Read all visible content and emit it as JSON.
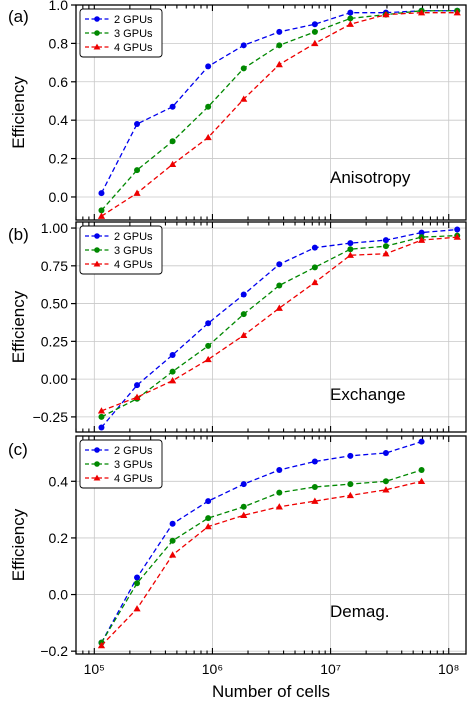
{
  "chart_data": [
    {
      "type": "line",
      "panel_label": "(a)",
      "annotation": "Anisotropy",
      "ylabel": "Efficiency",
      "xlabel": "",
      "xscale": "log",
      "xlim": [
        70000,
        140000000
      ],
      "ylim": [
        -0.12,
        1.0
      ],
      "yticks": [
        0.0,
        0.2,
        0.4,
        0.6,
        0.8,
        1.0
      ],
      "ytick_labels": [
        "0.0",
        "0.2",
        "0.4",
        "0.6",
        "0.8",
        "1.0"
      ],
      "grid": true,
      "legend_position": "top-left",
      "series": [
        {
          "name": "2 GPUs",
          "color": "#0000ee",
          "marker": "circle",
          "x": [
            115000,
            230000,
            460000,
            920000,
            1840000,
            3680000,
            7360000,
            14700000,
            29400000,
            58900000,
            118000000
          ],
          "y": [
            0.02,
            0.38,
            0.47,
            0.68,
            0.79,
            0.86,
            0.9,
            0.96,
            0.96,
            0.97,
            0.97
          ]
        },
        {
          "name": "3 GPUs",
          "color": "#008800",
          "marker": "circle",
          "x": [
            115000,
            230000,
            460000,
            920000,
            1840000,
            3680000,
            7360000,
            14700000,
            29400000,
            58900000,
            118000000
          ],
          "y": [
            -0.07,
            0.14,
            0.29,
            0.47,
            0.67,
            0.79,
            0.86,
            0.93,
            0.95,
            0.97,
            0.97
          ]
        },
        {
          "name": "4 GPUs",
          "color": "#ee0000",
          "marker": "triangle",
          "x": [
            115000,
            230000,
            460000,
            920000,
            1840000,
            3680000,
            7360000,
            14700000,
            29400000,
            58900000,
            118000000
          ],
          "y": [
            -0.1,
            0.02,
            0.17,
            0.31,
            0.51,
            0.69,
            0.8,
            0.9,
            0.95,
            0.96,
            0.96
          ]
        }
      ]
    },
    {
      "type": "line",
      "panel_label": "(b)",
      "annotation": "Exchange",
      "ylabel": "Efficiency",
      "xlabel": "",
      "xscale": "log",
      "xlim": [
        70000,
        140000000
      ],
      "ylim": [
        -0.35,
        1.04
      ],
      "yticks": [
        -0.25,
        0.0,
        0.25,
        0.5,
        0.75,
        1.0
      ],
      "ytick_labels": [
        "−0.25",
        "0.00",
        "0.25",
        "0.50",
        "0.75",
        "1.00"
      ],
      "grid": true,
      "legend_position": "top-left",
      "series": [
        {
          "name": "2 GPUs",
          "color": "#0000ee",
          "marker": "circle",
          "x": [
            115000,
            230000,
            460000,
            920000,
            1840000,
            3680000,
            7360000,
            14700000,
            29400000,
            58900000,
            118000000
          ],
          "y": [
            -0.32,
            -0.04,
            0.16,
            0.37,
            0.56,
            0.76,
            0.87,
            0.9,
            0.92,
            0.97,
            0.99
          ]
        },
        {
          "name": "3 GPUs",
          "color": "#008800",
          "marker": "circle",
          "x": [
            115000,
            230000,
            460000,
            920000,
            1840000,
            3680000,
            7360000,
            14700000,
            29400000,
            58900000,
            118000000
          ],
          "y": [
            -0.25,
            -0.13,
            0.05,
            0.22,
            0.43,
            0.62,
            0.74,
            0.86,
            0.88,
            0.94,
            0.95
          ]
        },
        {
          "name": "4 GPUs",
          "color": "#ee0000",
          "marker": "triangle",
          "x": [
            115000,
            230000,
            460000,
            920000,
            1840000,
            3680000,
            7360000,
            14700000,
            29400000,
            58900000,
            118000000
          ],
          "y": [
            -0.21,
            -0.12,
            -0.01,
            0.13,
            0.29,
            0.47,
            0.64,
            0.82,
            0.83,
            0.92,
            0.94
          ]
        }
      ]
    },
    {
      "type": "line",
      "panel_label": "(c)",
      "annotation": "Demag.",
      "ylabel": "Efficiency",
      "xlabel": "Number of cells",
      "xscale": "log",
      "xlim": [
        70000,
        140000000
      ],
      "ylim": [
        -0.21,
        0.56
      ],
      "yticks": [
        -0.2,
        0.0,
        0.2,
        0.4
      ],
      "ytick_labels": [
        "−0.2",
        "0.0",
        "0.2",
        "0.4"
      ],
      "xtick_labels": [
        "10⁵",
        "10⁶",
        "10⁷",
        "10⁸"
      ],
      "grid": true,
      "legend_position": "top-left",
      "series": [
        {
          "name": "2 GPUs",
          "color": "#0000ee",
          "marker": "circle",
          "x": [
            115000,
            230000,
            460000,
            920000,
            1840000,
            3680000,
            7360000,
            14700000,
            29400000,
            58900000
          ],
          "y": [
            -0.17,
            0.06,
            0.25,
            0.33,
            0.39,
            0.44,
            0.47,
            0.49,
            0.5,
            0.54
          ]
        },
        {
          "name": "3 GPUs",
          "color": "#008800",
          "marker": "circle",
          "x": [
            115000,
            230000,
            460000,
            920000,
            1840000,
            3680000,
            7360000,
            14700000,
            29400000,
            58900000
          ],
          "y": [
            -0.17,
            0.04,
            0.19,
            0.27,
            0.31,
            0.36,
            0.38,
            0.39,
            0.4,
            0.44
          ]
        },
        {
          "name": "4 GPUs",
          "color": "#ee0000",
          "marker": "triangle",
          "x": [
            115000,
            230000,
            460000,
            920000,
            1840000,
            3680000,
            7360000,
            14700000,
            29400000,
            58900000
          ],
          "y": [
            -0.18,
            -0.05,
            0.14,
            0.24,
            0.28,
            0.31,
            0.33,
            0.35,
            0.37,
            0.4
          ]
        }
      ]
    }
  ]
}
